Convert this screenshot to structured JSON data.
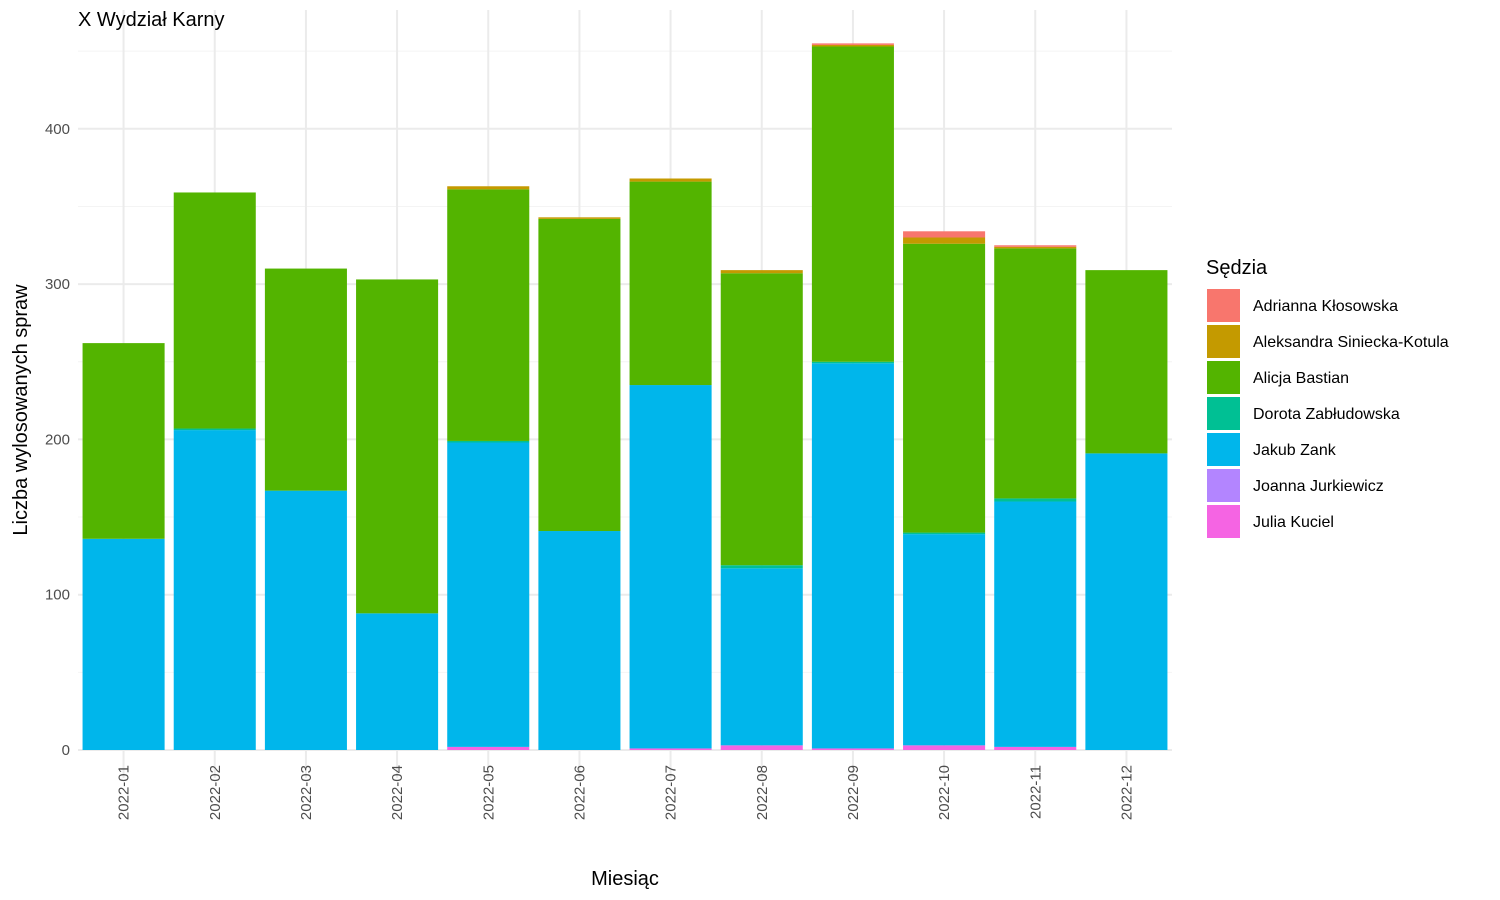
{
  "chart_data": {
    "type": "bar",
    "stacked": true,
    "title": "X Wydział Karny",
    "xlabel": "Miesiąc",
    "ylabel": "Liczba wylosowanych spraw",
    "ylim": [
      0,
      460
    ],
    "yticks": [
      0,
      100,
      200,
      300,
      400
    ],
    "grid": true,
    "legend_title": "Sędzia",
    "legend_position": "right",
    "categories": [
      "2022-01",
      "2022-02",
      "2022-03",
      "2022-04",
      "2022-05",
      "2022-06",
      "2022-07",
      "2022-08",
      "2022-09",
      "2022-10",
      "2022-11",
      "2022-12"
    ],
    "series": [
      {
        "name": "Julia Kuciel",
        "color": "#F564E3",
        "values": [
          0,
          0,
          0,
          0,
          2,
          0,
          1,
          3,
          1,
          3,
          2,
          0
        ]
      },
      {
        "name": "Joanna Jurkiewicz",
        "color": "#B385FF",
        "values": [
          0,
          0,
          0,
          0,
          0,
          0,
          0,
          0,
          0,
          0,
          0,
          0
        ]
      },
      {
        "name": "Jakub Zank",
        "color": "#00B6EB",
        "values": [
          136,
          206,
          167,
          88,
          196,
          141,
          234,
          114,
          248,
          136,
          158,
          191
        ]
      },
      {
        "name": "Dorota Zabłudowska",
        "color": "#00C094",
        "values": [
          0,
          1,
          0,
          0,
          1,
          0,
          0,
          2,
          1,
          1,
          2,
          0
        ]
      },
      {
        "name": "Alicja Bastian",
        "color": "#53B400",
        "values": [
          126,
          152,
          143,
          215,
          162,
          201,
          131,
          188,
          203,
          186,
          161,
          118
        ]
      },
      {
        "name": "Aleksandra Siniecka-Kotula",
        "color": "#C49A00",
        "values": [
          0,
          0,
          0,
          0,
          2,
          1,
          2,
          2,
          1,
          4,
          1,
          0
        ]
      },
      {
        "name": "Adrianna Kłosowska",
        "color": "#F8766D",
        "values": [
          0,
          0,
          0,
          0,
          0,
          0,
          0,
          0,
          1,
          4,
          1,
          0
        ]
      }
    ],
    "legend_order": [
      "Adrianna Kłosowska",
      "Aleksandra Siniecka-Kotula",
      "Alicja Bastian",
      "Dorota Zabłudowska",
      "Jakub Zank",
      "Joanna Jurkiewicz",
      "Julia Kuciel"
    ]
  }
}
